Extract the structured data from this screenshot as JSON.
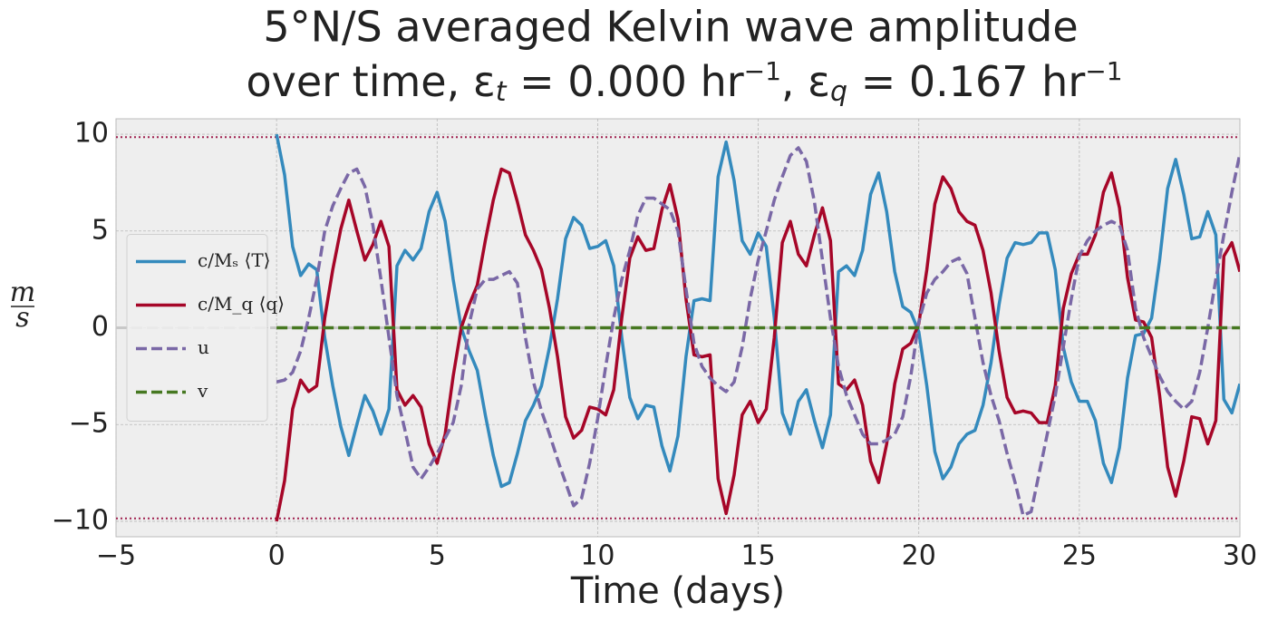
{
  "chart_data": {
    "type": "line",
    "title": "5°N/S averaged Kelvin wave amplitude",
    "subtitle_parts": [
      {
        "text": "over time, ε"
      },
      {
        "text": "t",
        "style": "sub"
      },
      {
        "text": " = 0.000 hr"
      },
      {
        "text": "−1",
        "style": "sup"
      },
      {
        "text": ",  ε"
      },
      {
        "text": "q",
        "style": "sub"
      },
      {
        "text": " = 0.167 hr"
      },
      {
        "text": "−1",
        "style": "sup"
      }
    ],
    "xlabel": "Time (days)",
    "ylabel": {
      "numerator": "m",
      "denominator": "s"
    },
    "xlim": [
      -5,
      30
    ],
    "xticks": [
      {
        "value": -5,
        "label": "−5"
      },
      0,
      5,
      10,
      15,
      20,
      25,
      30
    ],
    "ylim": [
      -10.8,
      10.8
    ],
    "yticks": [
      {
        "value": -10,
        "label": "−10"
      },
      {
        "value": -5,
        "label": "−5"
      },
      0,
      5,
      10
    ],
    "grid": true,
    "legend": "center left",
    "zero_line": true,
    "hlines": {
      "values": [
        9.85,
        -9.85
      ],
      "color": "#a0214f"
    },
    "x": [
      0,
      0.25,
      0.5,
      0.75,
      1,
      1.25,
      1.5,
      1.75,
      2,
      2.25,
      2.5,
      2.75,
      3,
      3.25,
      3.5,
      3.75,
      4,
      4.25,
      4.5,
      4.75,
      5,
      5.25,
      5.5,
      5.75,
      6,
      6.25,
      6.5,
      6.75,
      7,
      7.25,
      7.5,
      7.75,
      8,
      8.25,
      8.5,
      8.75,
      9,
      9.25,
      9.5,
      9.75,
      10,
      10.25,
      10.5,
      10.75,
      11,
      11.25,
      11.5,
      11.75,
      12,
      12.25,
      12.5,
      12.75,
      13,
      13.25,
      13.5,
      13.75,
      14,
      14.25,
      14.5,
      14.75,
      15,
      15.25,
      15.5,
      15.75,
      16,
      16.25,
      16.5,
      16.75,
      17,
      17.25,
      17.5,
      17.75,
      18,
      18.25,
      18.5,
      18.75,
      19,
      19.25,
      19.5,
      19.75,
      20,
      20.25,
      20.5,
      20.75,
      21,
      21.25,
      21.5,
      21.75,
      22,
      22.25,
      22.5,
      22.75,
      23,
      23.25,
      23.5,
      23.75,
      24,
      24.25,
      24.5,
      24.75,
      25,
      25.25,
      25.5,
      25.75,
      26,
      26.25,
      26.5,
      26.75,
      27,
      27.25,
      27.5,
      27.75,
      28,
      28.25,
      28.5,
      28.75,
      29,
      29.25,
      29.5,
      29.75,
      30
    ],
    "series": [
      {
        "name": "c/Mₛ ⟨T⟩",
        "color": "#348abd",
        "dash": false,
        "values": [
          10,
          7.9,
          4.2,
          2.7,
          3.3,
          3.0,
          -0.5,
          -3.0,
          -5.1,
          -6.6,
          -5.0,
          -3.5,
          -4.3,
          -5.5,
          -4.2,
          3.2,
          4.0,
          3.5,
          4.1,
          6.0,
          7.0,
          5.5,
          2.5,
          0,
          -1.2,
          -2.2,
          -4.5,
          -6.6,
          -8.2,
          -8.0,
          -6.5,
          -4.8,
          -4.0,
          -3.0,
          -1.0,
          1.5,
          4.6,
          5.7,
          5.3,
          4.1,
          4.2,
          4.5,
          3.2,
          -0.5,
          -3.6,
          -4.7,
          -4.0,
          -4.1,
          -6.1,
          -7.4,
          -5.6,
          -1.5,
          1.4,
          1.5,
          1.4,
          7.8,
          9.6,
          7.6,
          4.5,
          3.8,
          4.9,
          4.2,
          0.5,
          -4.4,
          -5.5,
          -3.8,
          -3.2,
          -4.8,
          -6.2,
          -4.5,
          2.9,
          3.2,
          2.7,
          4.0,
          6.9,
          8.0,
          6.0,
          2.9,
          1.1,
          0.8,
          -0.2,
          -3.0,
          -6.4,
          -7.8,
          -7.2,
          -6.0,
          -5.5,
          -5.3,
          -4.0,
          -1.8,
          1.2,
          3.6,
          4.4,
          4.3,
          4.4,
          4.9,
          4.9,
          3.0,
          -1.0,
          -2.8,
          -3.8,
          -3.8,
          -4.8,
          -7.0,
          -8.0,
          -6.2,
          -2.6,
          -0.4,
          -0.3,
          0.5,
          3.5,
          7.2,
          8.7,
          6.9,
          4.6,
          4.7,
          6.0,
          4.8,
          -3.7,
          -4.4,
          -2.9
        ]
      },
      {
        "name": "c/M_q ⟨q⟩",
        "color": "#a60628",
        "dash": false,
        "values": [
          -10,
          -7.9,
          -4.2,
          -2.7,
          -3.3,
          -3.0,
          0.5,
          3.0,
          5.1,
          6.6,
          5.0,
          3.5,
          4.3,
          5.5,
          4.2,
          -3.2,
          -4.0,
          -3.5,
          -4.1,
          -6.0,
          -7.0,
          -5.5,
          -2.5,
          0,
          1.2,
          2.2,
          4.5,
          6.6,
          8.2,
          8.0,
          6.5,
          4.8,
          4.0,
          3.0,
          1.0,
          -1.5,
          -4.6,
          -5.7,
          -5.3,
          -4.1,
          -4.2,
          -4.5,
          -3.2,
          0.5,
          3.6,
          4.7,
          4.0,
          4.1,
          6.1,
          7.4,
          5.6,
          1.5,
          -1.4,
          -1.5,
          -1.4,
          -7.8,
          -9.6,
          -7.6,
          -4.5,
          -3.8,
          -4.9,
          -4.2,
          -0.5,
          4.4,
          5.5,
          3.8,
          3.2,
          4.8,
          6.2,
          4.5,
          -2.9,
          -3.2,
          -2.7,
          -4.0,
          -6.9,
          -8.0,
          -6.0,
          -2.9,
          -1.1,
          -0.8,
          0.2,
          3.0,
          6.4,
          7.8,
          7.2,
          6.0,
          5.5,
          5.3,
          4.0,
          1.8,
          -1.2,
          -3.6,
          -4.4,
          -4.3,
          -4.4,
          -4.9,
          -4.9,
          -3.0,
          1.0,
          2.8,
          3.8,
          3.8,
          4.8,
          7.0,
          8.0,
          6.2,
          2.6,
          0.4,
          0.3,
          -0.5,
          -3.5,
          -7.2,
          -8.7,
          -6.9,
          -4.6,
          -4.7,
          -6.0,
          -4.8,
          3.7,
          4.4,
          2.9
        ]
      },
      {
        "name": "u",
        "color": "#7a68a6",
        "dash": true,
        "values": [
          -2.8,
          -2.7,
          -2.3,
          -1.2,
          0.5,
          2.5,
          5.0,
          6.3,
          7.2,
          8.0,
          8.2,
          7.3,
          5.3,
          2.5,
          -0.5,
          -3.5,
          -5.3,
          -7.2,
          -7.8,
          -7.2,
          -6.5,
          -5.7,
          -4.9,
          -3.0,
          0.2,
          2.0,
          2.5,
          2.5,
          2.7,
          2.9,
          2.3,
          -0.5,
          -2.8,
          -4.3,
          -5.5,
          -6.8,
          -8.0,
          -9.2,
          -8.8,
          -7.0,
          -4.7,
          -2.0,
          0.5,
          2.5,
          4.0,
          5.8,
          6.7,
          6.7,
          6.4,
          6.1,
          5.0,
          2.0,
          -0.8,
          -2.0,
          -2.6,
          -3.0,
          -3.3,
          -2.8,
          -1.0,
          1.5,
          3.5,
          5.0,
          6.6,
          7.8,
          8.9,
          9.3,
          8.6,
          6.5,
          3.5,
          0.5,
          -2.0,
          -3.5,
          -4.5,
          -5.5,
          -6.0,
          -6.0,
          -5.8,
          -5.5,
          -4.6,
          -2.5,
          0.3,
          1.8,
          2.5,
          2.9,
          3.4,
          3.6,
          2.8,
          0.5,
          -1.8,
          -3.5,
          -4.8,
          -6.5,
          -8.0,
          -9.7,
          -9.5,
          -7.5,
          -5.5,
          -3.5,
          -1.0,
          1.5,
          3.7,
          4.5,
          5.0,
          5.3,
          5.5,
          5.3,
          4.0,
          1.0,
          -0.5,
          -1.5,
          -2.5,
          -3.3,
          -3.8,
          -4.2,
          -3.8,
          -2.3,
          0.0,
          2.5,
          4.8,
          7.0,
          9.0
        ]
      },
      {
        "name": "v",
        "color": "#467821",
        "dash": true,
        "values": [
          0,
          0,
          0,
          0,
          0,
          0,
          0,
          0,
          0,
          0,
          0,
          0,
          0,
          0,
          0,
          0,
          0,
          0,
          0,
          0,
          0,
          0,
          0,
          0,
          0,
          0,
          0,
          0,
          0,
          0,
          0,
          0,
          0,
          0,
          0,
          0,
          0,
          0,
          0,
          0,
          0,
          0,
          0,
          0,
          0,
          0,
          0,
          0,
          0,
          0,
          0,
          0,
          0,
          0,
          0,
          0,
          0,
          0,
          0,
          0,
          0,
          0,
          0,
          0,
          0,
          0,
          0,
          0,
          0,
          0,
          0,
          0,
          0,
          0,
          0,
          0,
          0,
          0,
          0,
          0,
          0,
          0,
          0,
          0,
          0,
          0,
          0,
          0,
          0,
          0,
          0,
          0,
          0,
          0,
          0,
          0,
          0,
          0,
          0,
          0,
          0,
          0,
          0,
          0,
          0,
          0,
          0,
          0,
          0,
          0,
          0,
          0,
          0,
          0,
          0,
          0,
          0,
          0,
          0,
          0,
          0
        ]
      }
    ]
  }
}
